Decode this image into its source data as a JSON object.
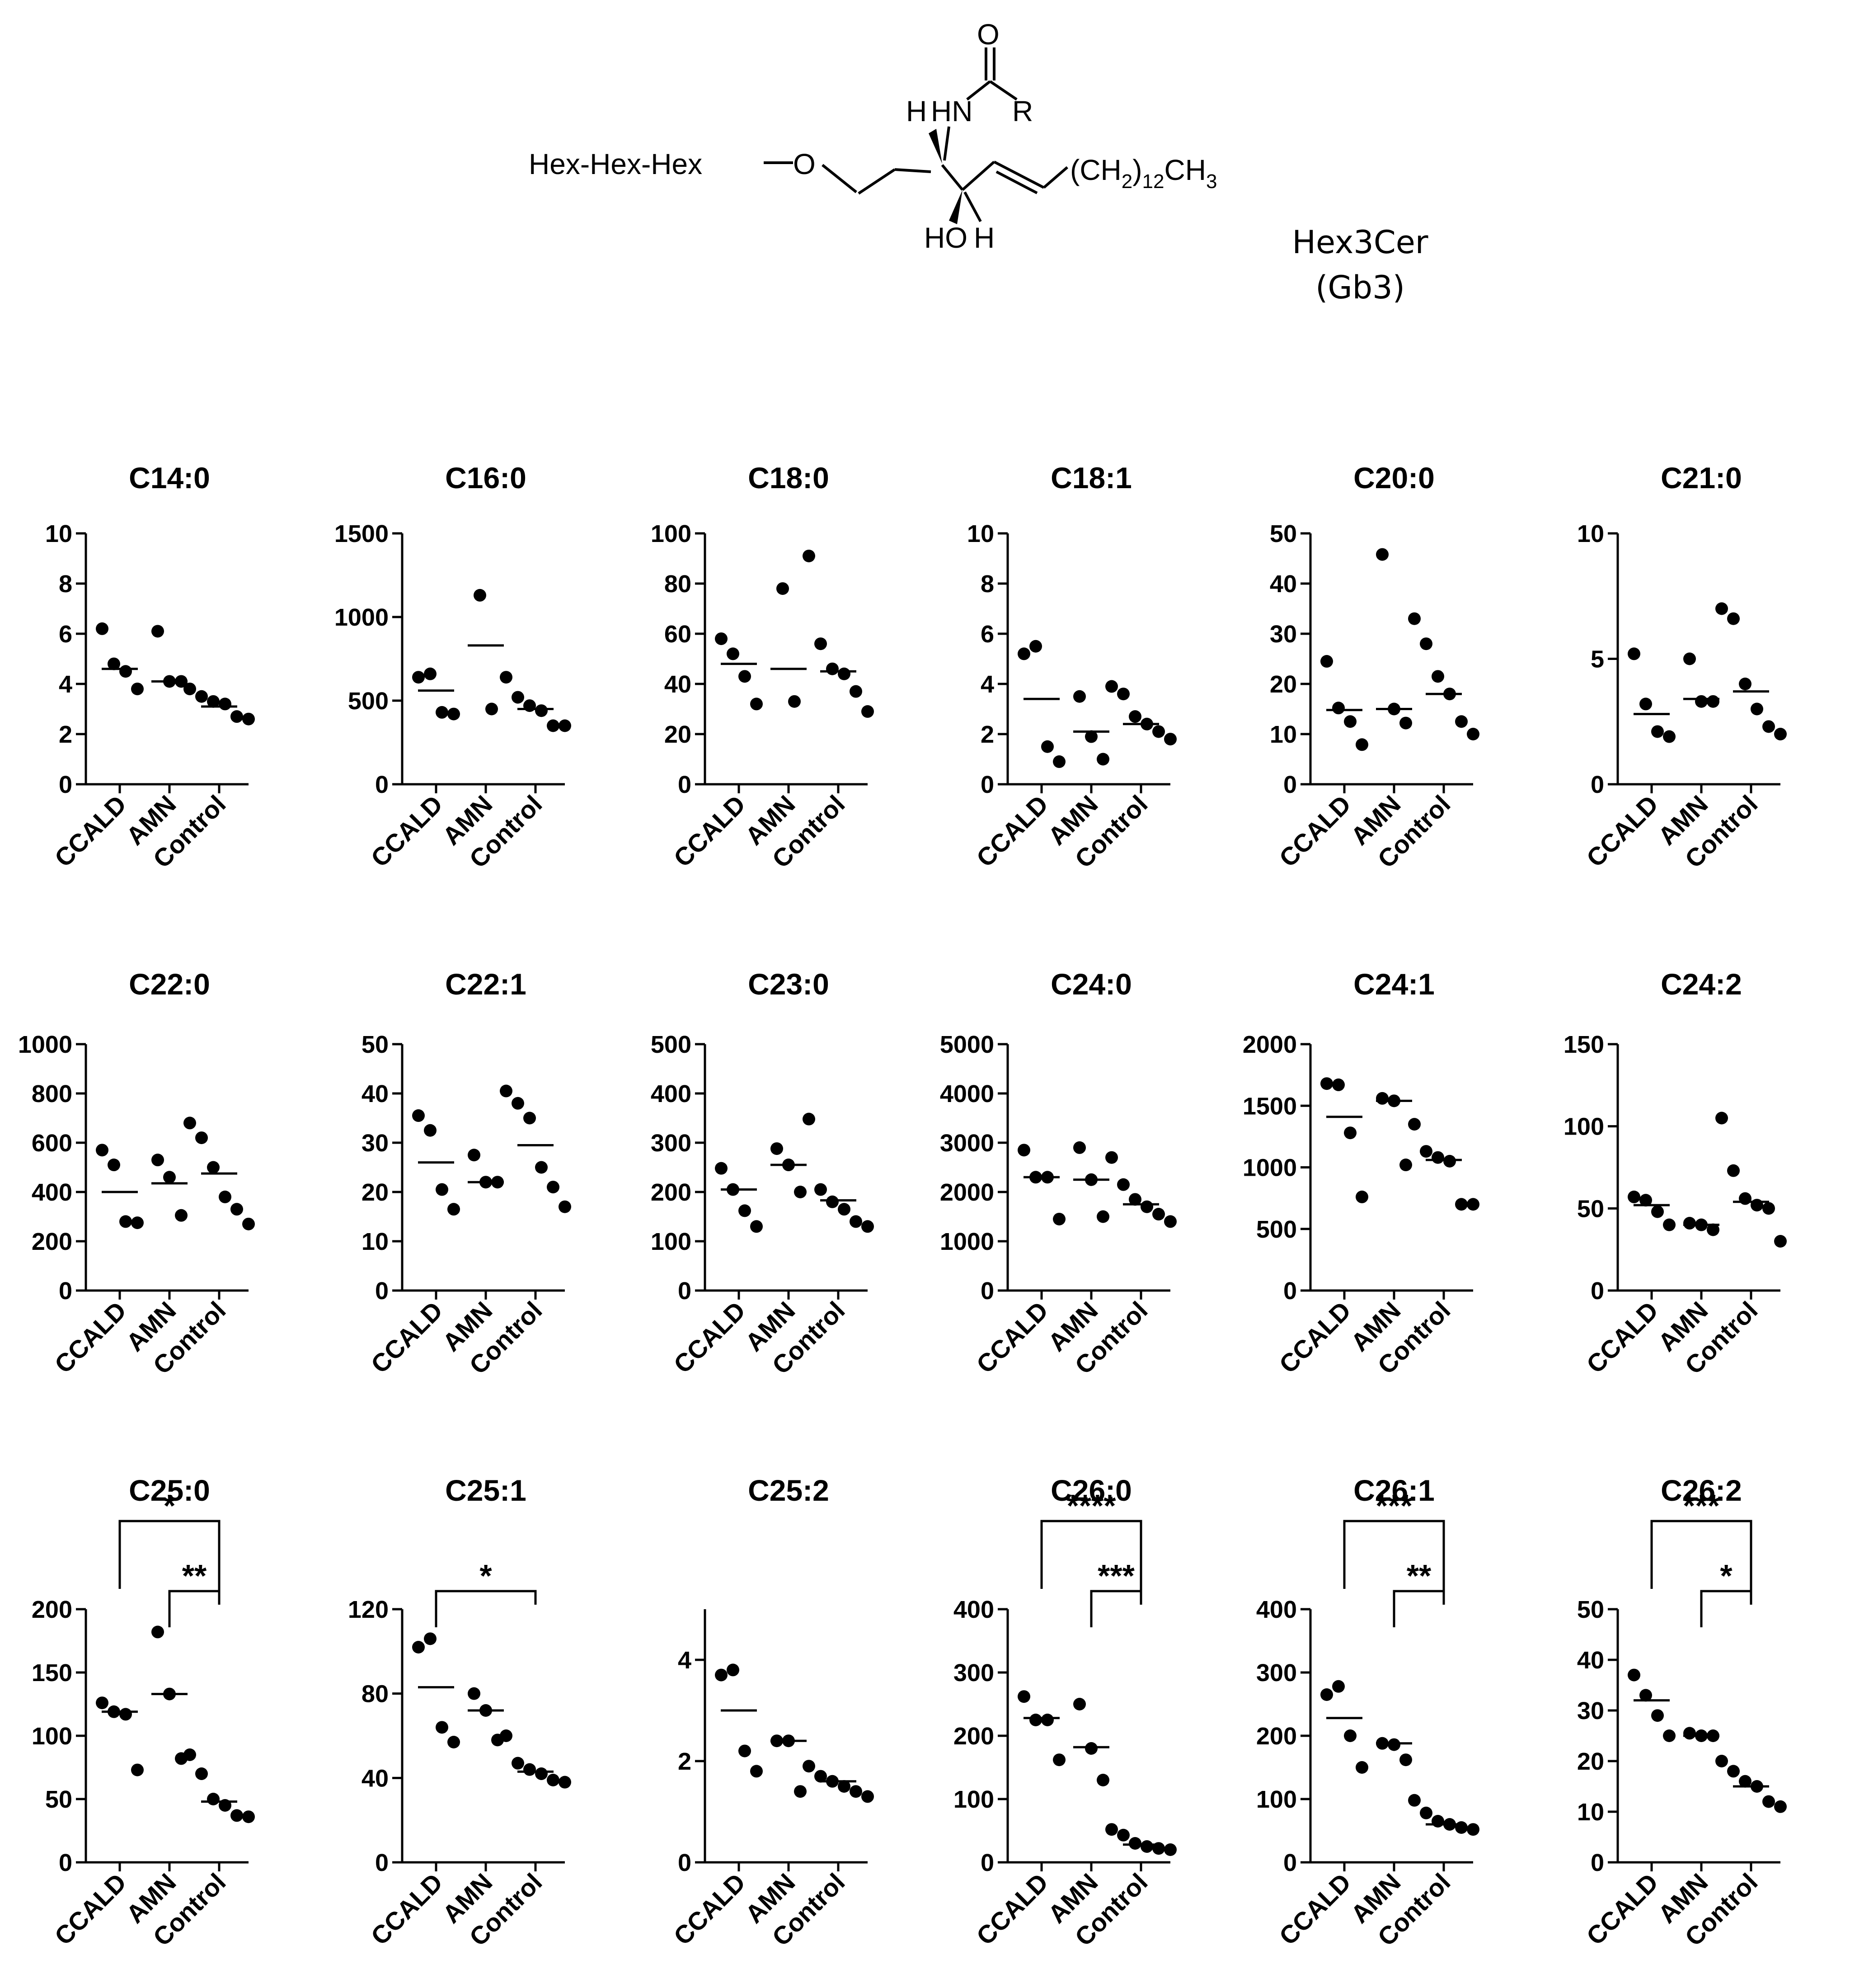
{
  "structure": {
    "atoms": {
      "oxygen_top": "O",
      "hn": "HN",
      "r": "R",
      "h_left": "H",
      "o_ether": "O",
      "ho": "HO",
      "h_bottom": "H"
    },
    "hex_chain": "Hex-Hex-Hex",
    "tail_ch2": "(CH",
    "tail_sub2": "2",
    "tail_close": ")",
    "tail_sub12": "12",
    "tail_ch3": "CH",
    "tail_sub3": "3",
    "name": "Hex3Cer",
    "alias": "(Gb3)"
  },
  "chart_data": [
    {
      "type": "scatter",
      "title": "C14:0",
      "categories": [
        "CCALD",
        "AMN",
        "Control"
      ],
      "ylim": [
        0,
        10
      ],
      "yticks": [
        0,
        2,
        4,
        6,
        8,
        10
      ],
      "points": [
        [
          6.2,
          4.8,
          4.5,
          3.8
        ],
        [
          6.1,
          4.1,
          4.1
        ],
        [
          3.8,
          3.5,
          3.3,
          3.2,
          2.7,
          2.6
        ]
      ],
      "medians": [
        4.6,
        4.1,
        3.1
      ],
      "grid": false,
      "significance": []
    },
    {
      "type": "scatter",
      "title": "C16:0",
      "categories": [
        "CCALD",
        "AMN",
        "Control"
      ],
      "ylim": [
        0,
        1500
      ],
      "yticks": [
        0,
        500,
        1000,
        1500
      ],
      "points": [
        [
          640,
          660,
          430,
          420
        ],
        [
          1130,
          450
        ],
        [
          640,
          520,
          470,
          440,
          350,
          350
        ]
      ],
      "medians": [
        560,
        830,
        450
      ],
      "grid": false,
      "significance": []
    },
    {
      "type": "scatter",
      "title": "C18:0",
      "categories": [
        "CCALD",
        "AMN",
        "Control"
      ],
      "ylim": [
        0,
        100
      ],
      "yticks": [
        0,
        20,
        40,
        60,
        80,
        100
      ],
      "points": [
        [
          58,
          52,
          43,
          32
        ],
        [
          78,
          33
        ],
        [
          91,
          56,
          46,
          44,
          37,
          29
        ]
      ],
      "medians": [
        48,
        46,
        45
      ],
      "grid": false,
      "significance": []
    },
    {
      "type": "scatter",
      "title": "C18:1",
      "categories": [
        "CCALD",
        "AMN",
        "Control"
      ],
      "ylim": [
        0,
        10
      ],
      "yticks": [
        0,
        2,
        4,
        6,
        8,
        10
      ],
      "points": [
        [
          5.2,
          5.5,
          1.5,
          0.9
        ],
        [
          3.5,
          1.9,
          1.0
        ],
        [
          3.9,
          3.6,
          2.7,
          2.4,
          2.1,
          1.8
        ]
      ],
      "medians": [
        3.4,
        2.1,
        2.4
      ],
      "grid": false,
      "significance": []
    },
    {
      "type": "scatter",
      "title": "C20:0",
      "categories": [
        "CCALD",
        "AMN",
        "Control"
      ],
      "ylim": [
        0,
        50
      ],
      "yticks": [
        0,
        10,
        20,
        30,
        40,
        50
      ],
      "points": [
        [
          24.5,
          15.2,
          12.5,
          7.9
        ],
        [
          45.8,
          15.0,
          12.2
        ],
        [
          33.0,
          28.0,
          21.5,
          18.0,
          12.5,
          10.0
        ]
      ],
      "medians": [
        14.8,
        15.0,
        18.0
      ],
      "grid": false,
      "significance": []
    },
    {
      "type": "scatter",
      "title": "C21:0",
      "categories": [
        "CCALD",
        "AMN",
        "Control"
      ],
      "ylim": [
        0,
        10
      ],
      "yticks": [
        0,
        5,
        10
      ],
      "points": [
        [
          5.2,
          3.2,
          2.1,
          1.9
        ],
        [
          5.0,
          3.3,
          3.3
        ],
        [
          7.0,
          6.6,
          4.0,
          3.0,
          2.3,
          2.0
        ]
      ],
      "medians": [
        2.8,
        3.4,
        3.7
      ],
      "grid": false,
      "significance": []
    },
    {
      "type": "scatter",
      "title": "C22:0",
      "categories": [
        "CCALD",
        "AMN",
        "Control"
      ],
      "ylim": [
        0,
        1000
      ],
      "yticks": [
        0,
        200,
        400,
        600,
        800,
        1000
      ],
      "points": [
        [
          570,
          510,
          280,
          275
        ],
        [
          530,
          460,
          305
        ],
        [
          680,
          620,
          500,
          380,
          330,
          270
        ]
      ],
      "medians": [
        400,
        435,
        475
      ],
      "grid": false,
      "significance": []
    },
    {
      "type": "scatter",
      "title": "C22:1",
      "categories": [
        "CCALD",
        "AMN",
        "Control"
      ],
      "ylim": [
        0,
        50
      ],
      "yticks": [
        0,
        10,
        20,
        30,
        40,
        50
      ],
      "points": [
        [
          35.5,
          32.5,
          20.5,
          16.5
        ],
        [
          27.5,
          22.0,
          22.0
        ],
        [
          40.5,
          38.0,
          35.0,
          25.0,
          21.0,
          17.0
        ]
      ],
      "medians": [
        26.0,
        22.0,
        29.5
      ],
      "grid": false,
      "significance": []
    },
    {
      "type": "scatter",
      "title": "C23:0",
      "categories": [
        "CCALD",
        "AMN",
        "Control"
      ],
      "ylim": [
        0,
        500
      ],
      "yticks": [
        0,
        100,
        200,
        300,
        400,
        500
      ],
      "points": [
        [
          248,
          205,
          162,
          130
        ],
        [
          288,
          255,
          200
        ],
        [
          348,
          205,
          180,
          165,
          140,
          130
        ]
      ],
      "medians": [
        205,
        255,
        183
      ],
      "grid": false,
      "significance": []
    },
    {
      "type": "scatter",
      "title": "C24:0",
      "categories": [
        "CCALD",
        "AMN",
        "Control"
      ],
      "ylim": [
        0,
        5000
      ],
      "yticks": [
        0,
        1000,
        2000,
        3000,
        4000,
        5000
      ],
      "points": [
        [
          2850,
          2300,
          2300,
          1450
        ],
        [
          2900,
          2250,
          1500
        ],
        [
          2700,
          2150,
          1850,
          1700,
          1550,
          1400
        ]
      ],
      "medians": [
        2300,
        2250,
        1750
      ],
      "grid": false,
      "significance": []
    },
    {
      "type": "scatter",
      "title": "C24:1",
      "categories": [
        "CCALD",
        "AMN",
        "Control"
      ],
      "ylim": [
        0,
        2000
      ],
      "yticks": [
        0,
        500,
        1000,
        1500,
        2000
      ],
      "points": [
        [
          1680,
          1670,
          1280,
          760
        ],
        [
          1560,
          1540,
          1020
        ],
        [
          1350,
          1130,
          1080,
          1050,
          700,
          700
        ]
      ],
      "medians": [
        1410,
        1540,
        1060
      ],
      "grid": false,
      "significance": []
    },
    {
      "type": "scatter",
      "title": "C24:2",
      "categories": [
        "CCALD",
        "AMN",
        "Control"
      ],
      "ylim": [
        0,
        150
      ],
      "yticks": [
        0,
        50,
        100,
        150
      ],
      "points": [
        [
          57,
          55,
          48,
          40
        ],
        [
          41,
          40,
          37
        ],
        [
          105,
          73,
          56,
          52,
          50,
          30
        ]
      ],
      "medians": [
        52,
        40,
        54
      ],
      "grid": false,
      "significance": []
    },
    {
      "type": "scatter",
      "title": "C25:0",
      "categories": [
        "CCALD",
        "AMN",
        "Control"
      ],
      "ylim": [
        0,
        200
      ],
      "yticks": [
        0,
        50,
        100,
        150,
        200
      ],
      "points": [
        [
          126,
          119,
          117,
          73
        ],
        [
          182,
          133,
          82
        ],
        [
          85,
          70,
          50,
          45,
          37,
          36
        ]
      ],
      "medians": [
        119,
        133,
        48
      ],
      "grid": false,
      "significance": [
        {
          "from": 0,
          "to": 2,
          "label": "*"
        },
        {
          "from": 1,
          "to": 2,
          "label": "**"
        }
      ]
    },
    {
      "type": "scatter",
      "title": "C25:1",
      "categories": [
        "CCALD",
        "AMN",
        "Control"
      ],
      "ylim": [
        0,
        120
      ],
      "yticks": [
        0,
        40,
        80,
        120
      ],
      "points": [
        [
          102,
          106,
          64,
          57
        ],
        [
          80,
          72,
          58
        ],
        [
          60,
          47,
          44,
          42,
          39,
          38
        ]
      ],
      "medians": [
        83,
        72,
        43
      ],
      "grid": false,
      "significance": [
        {
          "from": 0,
          "to": 2,
          "label": "*"
        }
      ]
    },
    {
      "type": "scatter",
      "title": "C25:2",
      "categories": [
        "CCALD",
        "AMN",
        "Control"
      ],
      "ylim": [
        0,
        5
      ],
      "yticks": [
        0,
        2,
        4
      ],
      "points": [
        [
          3.7,
          3.8,
          2.2,
          1.8
        ],
        [
          2.4,
          2.4,
          1.4
        ],
        [
          1.9,
          1.7,
          1.6,
          1.5,
          1.4,
          1.3
        ]
      ],
      "medians": [
        3.0,
        2.4,
        1.6
      ],
      "grid": false,
      "significance": []
    },
    {
      "type": "scatter",
      "title": "C26:0",
      "categories": [
        "CCALD",
        "AMN",
        "Control"
      ],
      "ylim": [
        0,
        400
      ],
      "yticks": [
        0,
        100,
        200,
        300,
        400
      ],
      "points": [
        [
          262,
          225,
          225,
          162
        ],
        [
          250,
          180,
          130
        ],
        [
          52,
          43,
          30,
          25,
          22,
          20
        ]
      ],
      "medians": [
        228,
        182,
        28
      ],
      "grid": false,
      "significance": [
        {
          "from": 0,
          "to": 2,
          "label": "****"
        },
        {
          "from": 1,
          "to": 2,
          "label": "***"
        }
      ]
    },
    {
      "type": "scatter",
      "title": "C26:1",
      "categories": [
        "CCALD",
        "AMN",
        "Control"
      ],
      "ylim": [
        0,
        400
      ],
      "yticks": [
        0,
        100,
        200,
        300,
        400
      ],
      "points": [
        [
          265,
          278,
          200,
          150
        ],
        [
          188,
          186,
          162
        ],
        [
          98,
          78,
          65,
          60,
          55,
          52
        ]
      ],
      "medians": [
        228,
        188,
        60
      ],
      "grid": false,
      "significance": [
        {
          "from": 0,
          "to": 2,
          "label": "***"
        },
        {
          "from": 1,
          "to": 2,
          "label": "**"
        }
      ]
    },
    {
      "type": "scatter",
      "title": "C26:2",
      "categories": [
        "CCALD",
        "AMN",
        "Control"
      ],
      "ylim": [
        0,
        50
      ],
      "yticks": [
        0,
        10,
        20,
        30,
        40,
        50
      ],
      "points": [
        [
          37,
          33,
          29,
          25
        ],
        [
          25.5,
          25,
          25
        ],
        [
          20,
          18,
          16,
          15,
          12,
          11
        ]
      ],
      "medians": [
        32,
        25,
        15
      ],
      "grid": false,
      "significance": [
        {
          "from": 0,
          "to": 2,
          "label": "***"
        },
        {
          "from": 1,
          "to": 2,
          "label": "*"
        }
      ]
    }
  ]
}
